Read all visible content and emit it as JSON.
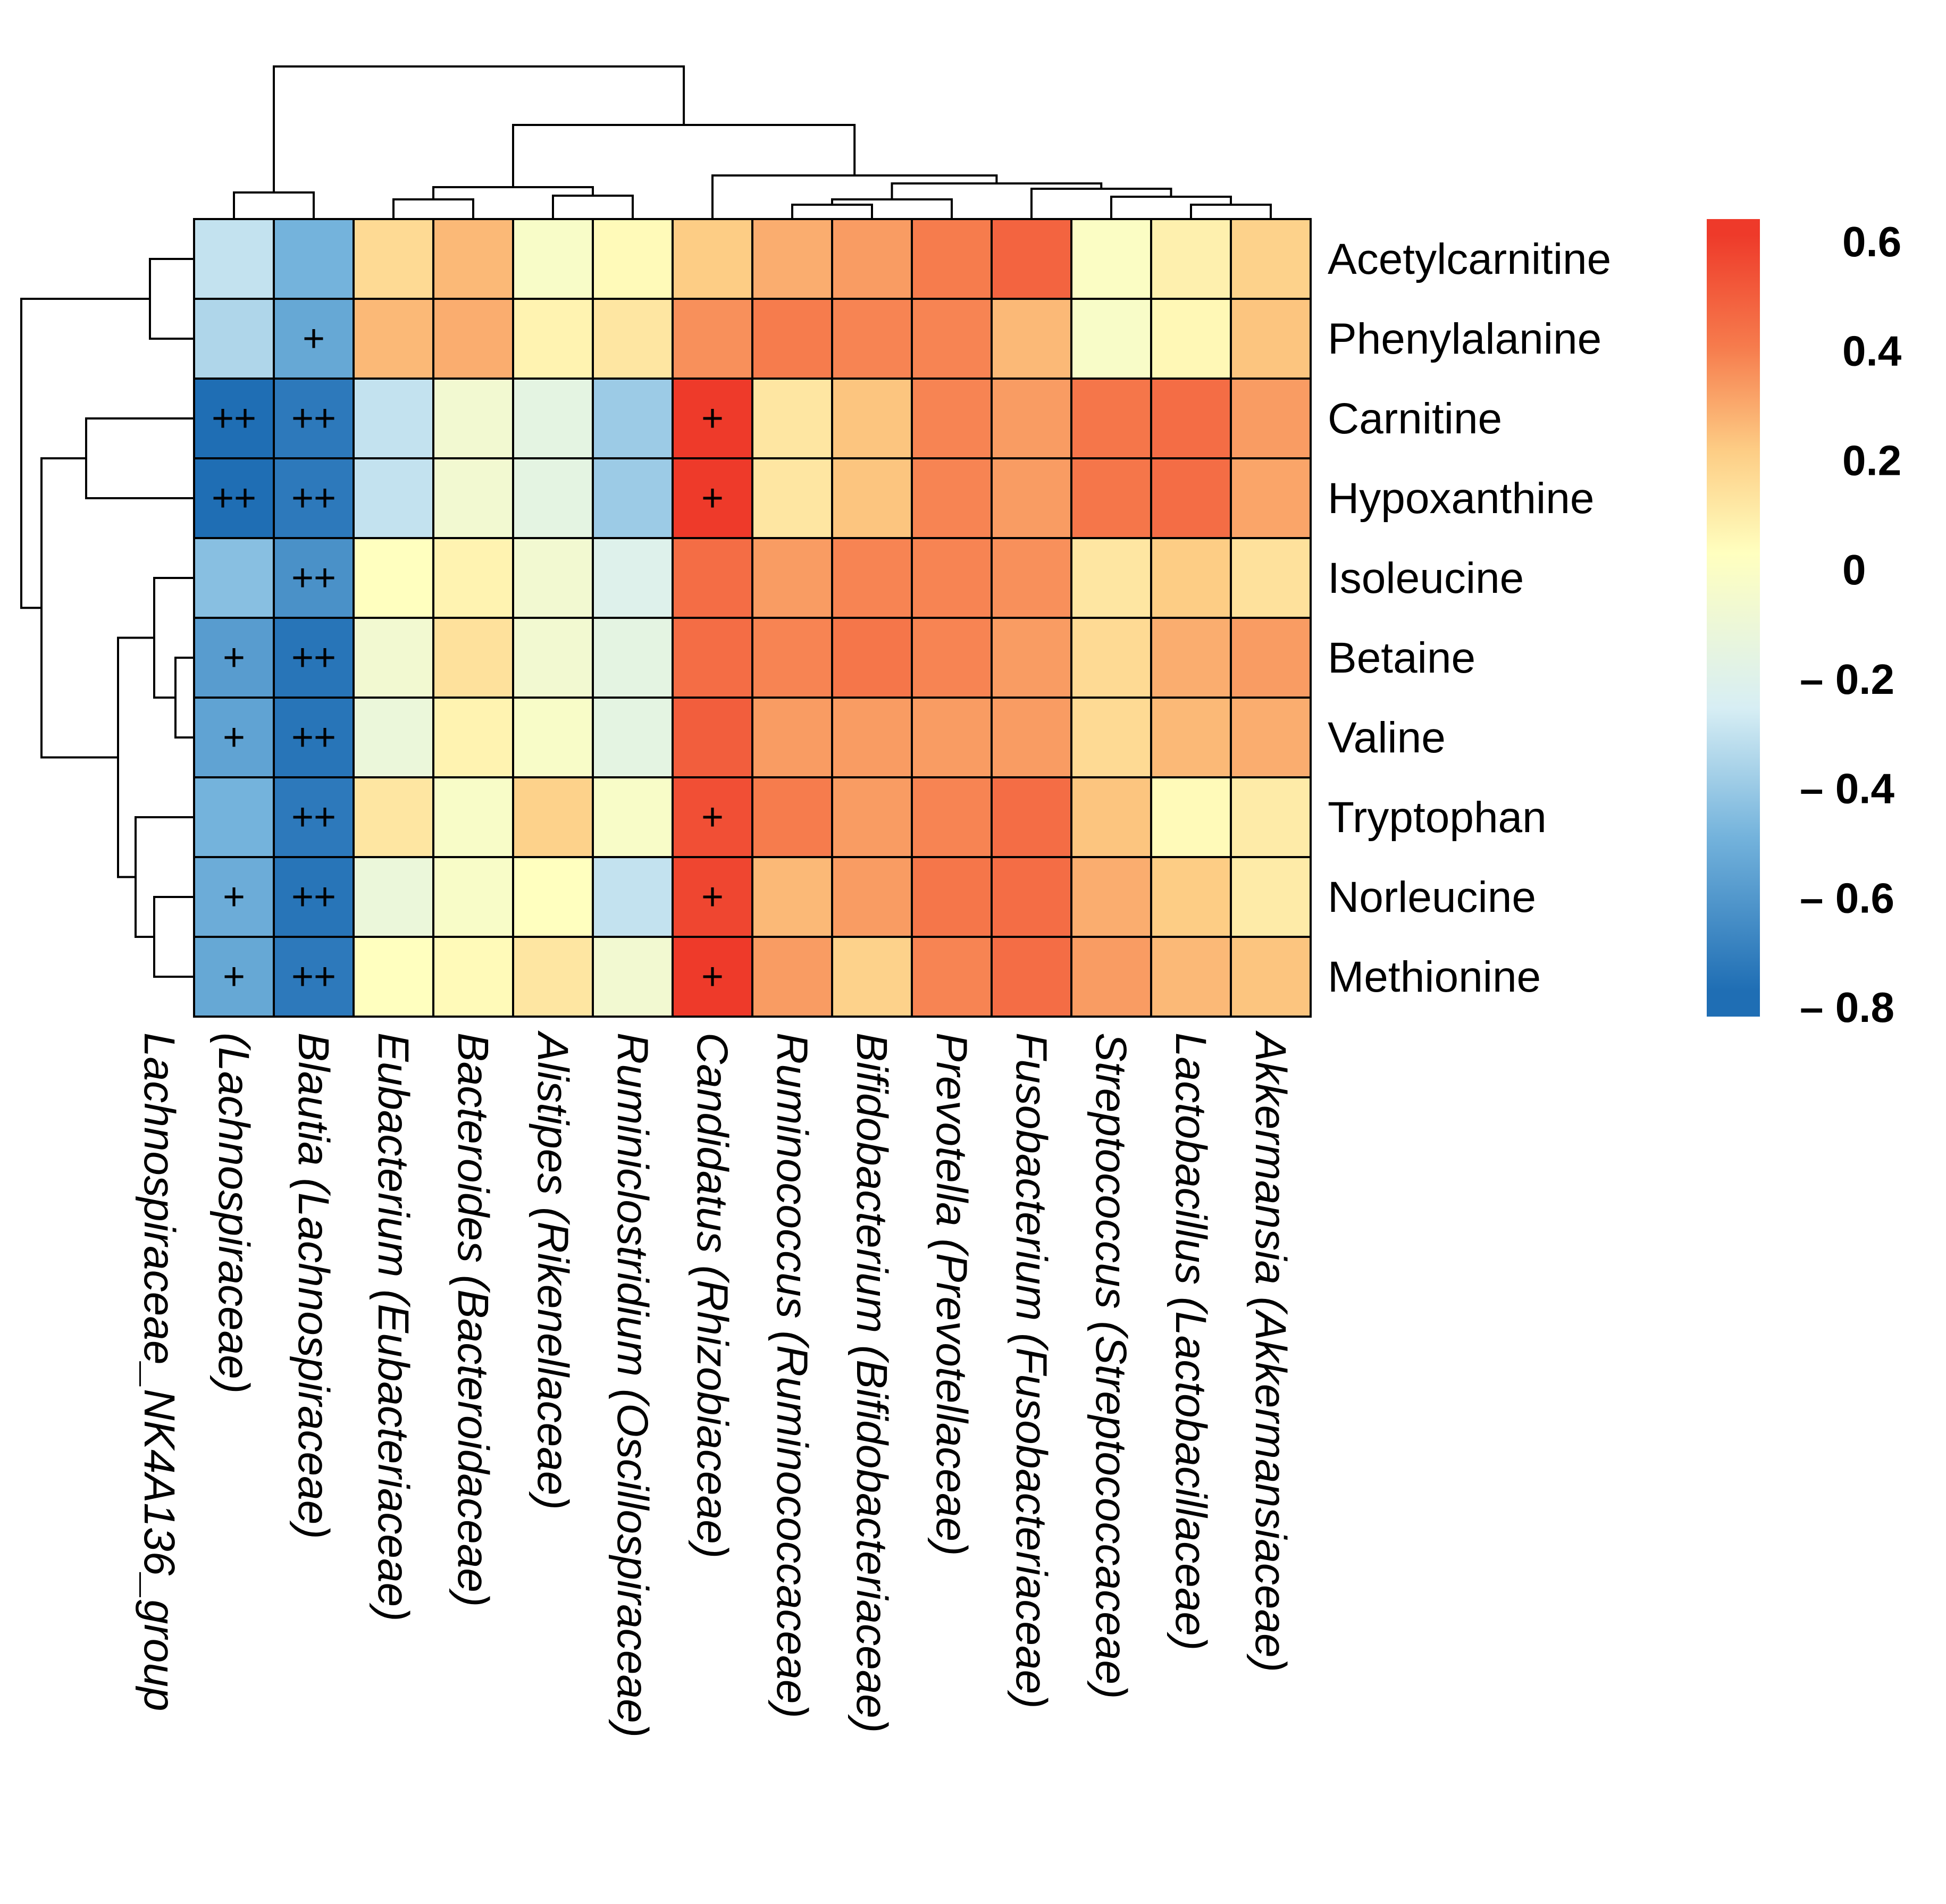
{
  "chart_data": {
    "type": "heatmap",
    "title": "",
    "rows": [
      "Acetylcarnitine",
      "Phenylalanine",
      "Carnitine",
      "Hypoxanthine",
      "Isoleucine",
      "Betaine",
      "Valine",
      "Tryptophan",
      "Norleucine",
      "Methionine"
    ],
    "columns": [
      {
        "genus": "Lachnospiraceae_NK4A136_group",
        "family": "Lachnospiraceae"
      },
      {
        "genus": "Blautia",
        "family": "Lachnospiraceae"
      },
      {
        "genus": "Eubacterium",
        "family": "Eubacteriaceae"
      },
      {
        "genus": "Bacteroides",
        "family": "Bacteroidaceae"
      },
      {
        "genus": "Alistipes",
        "family": "Rikenellaceae"
      },
      {
        "genus": "Ruminiclostridium",
        "family": "Oscillospiraceae"
      },
      {
        "genus": "Candidatus",
        "family": "Rhizobiaceae"
      },
      {
        "genus": "Ruminococcus",
        "family": "Ruminococcaceae"
      },
      {
        "genus": "Bifidobacterium",
        "family": "Bifidobacteriaceae"
      },
      {
        "genus": "Prevotella",
        "family": "Prevotellaceae"
      },
      {
        "genus": "Fusobacterium",
        "family": "Fusobacteriaceae"
      },
      {
        "genus": "Streptococcus",
        "family": "Streptococcaceae"
      },
      {
        "genus": "Lactobacillus",
        "family": "Lactobacillaceae"
      },
      {
        "genus": "Akkermansia",
        "family": "Akkermansiaceae"
      }
    ],
    "values": [
      [
        -0.35,
        -0.55,
        0.15,
        0.25,
        -0.05,
        0.02,
        0.2,
        0.28,
        0.32,
        0.4,
        0.48,
        -0.03,
        0.06,
        0.18
      ],
      [
        -0.4,
        -0.6,
        0.25,
        0.28,
        0.05,
        0.1,
        0.35,
        0.4,
        0.38,
        0.38,
        0.25,
        -0.05,
        0.03,
        0.22
      ],
      [
        -0.85,
        -0.8,
        -0.35,
        -0.1,
        -0.2,
        -0.45,
        0.62,
        0.1,
        0.22,
        0.38,
        0.32,
        0.42,
        0.45,
        0.32
      ],
      [
        -0.85,
        -0.8,
        -0.35,
        -0.1,
        -0.2,
        -0.45,
        0.62,
        0.1,
        0.22,
        0.38,
        0.32,
        0.42,
        0.45,
        0.3
      ],
      [
        -0.5,
        -0.7,
        0.0,
        0.05,
        -0.1,
        -0.25,
        0.45,
        0.32,
        0.38,
        0.38,
        0.35,
        0.1,
        0.2,
        0.12
      ],
      [
        -0.65,
        -0.82,
        -0.1,
        0.12,
        -0.1,
        -0.2,
        0.45,
        0.38,
        0.42,
        0.38,
        0.32,
        0.15,
        0.28,
        0.32
      ],
      [
        -0.62,
        -0.82,
        -0.15,
        0.05,
        -0.05,
        -0.2,
        0.5,
        0.32,
        0.32,
        0.32,
        0.32,
        0.15,
        0.25,
        0.28
      ],
      [
        -0.55,
        -0.8,
        0.1,
        -0.05,
        0.18,
        -0.05,
        0.55,
        0.4,
        0.32,
        0.38,
        0.45,
        0.22,
        0.02,
        0.08
      ],
      [
        -0.58,
        -0.82,
        -0.15,
        -0.05,
        0.0,
        -0.35,
        0.58,
        0.25,
        0.32,
        0.42,
        0.45,
        0.28,
        0.2,
        0.08
      ],
      [
        -0.6,
        -0.8,
        0.0,
        0.02,
        0.1,
        -0.1,
        0.62,
        0.32,
        0.18,
        0.38,
        0.45,
        0.32,
        0.25,
        0.22
      ]
    ],
    "marks": [
      [
        "",
        "",
        "",
        "",
        "",
        "",
        "",
        "",
        "",
        "",
        "",
        "",
        "",
        ""
      ],
      [
        "",
        "+",
        "",
        "",
        "",
        "",
        "",
        "",
        "",
        "",
        "",
        "",
        "",
        ""
      ],
      [
        "++",
        "++",
        "",
        "",
        "",
        "",
        "+",
        "",
        "",
        "",
        "",
        "",
        "",
        ""
      ],
      [
        "++",
        "++",
        "",
        "",
        "",
        "",
        "+",
        "",
        "",
        "",
        "",
        "",
        "",
        ""
      ],
      [
        "",
        "++",
        "",
        "",
        "",
        "",
        "",
        "",
        "",
        "",
        "",
        "",
        "",
        ""
      ],
      [
        "+",
        "++",
        "",
        "",
        "",
        "",
        "",
        "",
        "",
        "",
        "",
        "",
        "",
        ""
      ],
      [
        "+",
        "++",
        "",
        "",
        "",
        "",
        "",
        "",
        "",
        "",
        "",
        "",
        "",
        ""
      ],
      [
        "",
        "++",
        "",
        "",
        "",
        "",
        "+",
        "",
        "",
        "",
        "",
        "",
        "",
        ""
      ],
      [
        "+",
        "++",
        "",
        "",
        "",
        "",
        "+",
        "",
        "",
        "",
        "",
        "",
        "",
        ""
      ],
      [
        "+",
        "++",
        "",
        "",
        "",
        "",
        "+",
        "",
        "",
        "",
        "",
        "",
        "",
        ""
      ]
    ],
    "legend": {
      "ticks": [
        "0.6",
        "0.4",
        "0.2",
        "0",
        "– 0.2",
        "– 0.4",
        "– 0.6",
        "– 0.8"
      ],
      "range": [
        -0.9,
        0.65
      ]
    },
    "colors": {
      "negative_strong": "#1f6eb4",
      "negative_mid": "#74b3dc",
      "negative_light": "#d7eef4",
      "neutral": "#ffffbf",
      "positive_light": "#fdcd85",
      "positive_mid": "#f67c4d",
      "positive_strong": "#ee3a2a",
      "grid": "#000000",
      "dendrogram": "#000000"
    }
  }
}
